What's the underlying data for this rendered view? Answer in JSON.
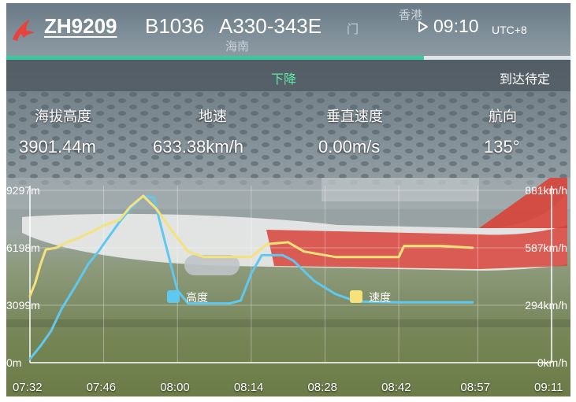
{
  "header": {
    "flight_no": "ZH9209",
    "registration": "B1036",
    "aircraft_type": "A330-343E",
    "map_labels": [
      "香港",
      "海南",
      "门"
    ],
    "time": "09:10",
    "timezone": "UTC+8",
    "progress": 0.74,
    "colors": {
      "accent": "#3ec8a0",
      "logo": "#e8423a"
    }
  },
  "status": {
    "phase": "下降",
    "arrival": "到达待定"
  },
  "stats": [
    {
      "label": "海拔高度",
      "value": "3901.44m"
    },
    {
      "label": "地速",
      "value": "633.38km/h"
    },
    {
      "label": "垂直速度",
      "value": "0.00m/s"
    },
    {
      "label": "航向",
      "value": "135°"
    }
  ],
  "chart_data": {
    "type": "line",
    "x": [
      "07:32",
      "07:46",
      "08:00",
      "08:14",
      "08:28",
      "08:42",
      "08:57",
      "09:11"
    ],
    "x_unit": "minutes after 07:32",
    "left_axis": {
      "ticks": [
        "9297m",
        "6198m",
        "3099m",
        "0m"
      ],
      "range": [
        0,
        9297
      ]
    },
    "right_axis": {
      "ticks": [
        "881km/h",
        "587km/h",
        "294km/h",
        "0km/h"
      ],
      "range": [
        0,
        881
      ]
    },
    "legend": [
      {
        "name": "高度",
        "color": "#5fc8f0"
      },
      {
        "name": "速度",
        "color": "#f5e27a"
      }
    ],
    "series": [
      {
        "name": "高度",
        "color": "#5fc8f0",
        "axis": "left",
        "points": [
          [
            0,
            200
          ],
          [
            2,
            900
          ],
          [
            4,
            1700
          ],
          [
            6,
            2900
          ],
          [
            9,
            4300
          ],
          [
            11,
            5300
          ],
          [
            13,
            6000
          ],
          [
            15,
            6800
          ],
          [
            17,
            7600
          ],
          [
            19,
            8300
          ],
          [
            21.5,
            9000
          ],
          [
            23.5,
            8900
          ],
          [
            26,
            6100
          ],
          [
            28,
            3900
          ],
          [
            30,
            3200
          ],
          [
            38,
            3200
          ],
          [
            40,
            3350
          ],
          [
            42,
            4800
          ],
          [
            44,
            5800
          ],
          [
            48,
            5800
          ],
          [
            50,
            5500
          ],
          [
            54,
            4400
          ],
          [
            58,
            3700
          ],
          [
            62,
            3300
          ],
          [
            70,
            3250
          ],
          [
            80,
            3250
          ],
          [
            84,
            3250
          ]
        ]
      },
      {
        "name": "速度",
        "color": "#f5e27a",
        "axis": "left_scale",
        "points": [
          [
            0,
            3600
          ],
          [
            1,
            4300
          ],
          [
            2,
            5300
          ],
          [
            3,
            6100
          ],
          [
            5,
            6200
          ],
          [
            7,
            6500
          ],
          [
            9,
            6700
          ],
          [
            12,
            7100
          ],
          [
            14,
            7400
          ],
          [
            17,
            7700
          ],
          [
            19,
            8400
          ],
          [
            21.5,
            9000
          ],
          [
            24,
            8300
          ],
          [
            27,
            7100
          ],
          [
            30,
            6000
          ],
          [
            33,
            5700
          ],
          [
            42,
            5700
          ],
          [
            45,
            6400
          ],
          [
            49,
            6500
          ],
          [
            52,
            6000
          ],
          [
            58,
            5700
          ],
          [
            70,
            5700
          ],
          [
            71,
            6300
          ],
          [
            78,
            6300
          ],
          [
            84,
            6200
          ]
        ]
      }
    ]
  }
}
